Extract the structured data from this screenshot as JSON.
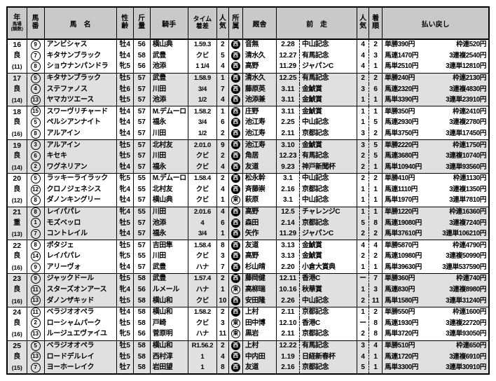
{
  "table": {
    "header": {
      "year": {
        "main": "年",
        "sub1": "馬場",
        "sub2": "(頭数)"
      },
      "umaban": {
        "l1": "馬",
        "l2": "番"
      },
      "name": "馬　名",
      "sexage": {
        "l1": "性",
        "l2": "齢"
      },
      "weight": {
        "l1": "斤",
        "l2": "量"
      },
      "jockey": "騎手",
      "time": {
        "l1": "タイム",
        "l2": "着差"
      },
      "pop": {
        "l1": "人",
        "l2": "気"
      },
      "belong": {
        "l1": "所",
        "l2": "属"
      },
      "stable": "厩舎",
      "prev": "前　走",
      "prev_pop": {
        "l1": "人",
        "l2": "気"
      },
      "finish": {
        "l1": "着",
        "l2": "順"
      },
      "payout": "払い戻し"
    },
    "groups": [
      {
        "year": "16",
        "track": "良",
        "heads": "(11)",
        "rows": [
          {
            "num": "9",
            "name": "アンビシャス",
            "sexage": "牡4",
            "weight": "56",
            "jockey": "横山典",
            "time": "1.59.3",
            "pop": "2",
            "belong": "西",
            "stable": "音無",
            "prev_date": "2.28",
            "prev_race": "中山記念",
            "prev_pop": "4",
            "finish": "2",
            "payout1": "単勝390円",
            "payout2": "枠連520円"
          },
          {
            "num": "7",
            "name": "キタサンブラック",
            "sexage": "牡4",
            "weight": "58",
            "jockey": "武豊",
            "time": "クビ",
            "pop": "5",
            "belong": "西",
            "stable": "清水久",
            "prev_date": "12.27",
            "prev_race": "有馬記念",
            "prev_pop": "4",
            "finish": "3",
            "payout1": "馬連1470円",
            "payout2": "3連複2540円"
          },
          {
            "num": "8",
            "name": "ショウナンパンドラ",
            "sexage": "牝5",
            "weight": "56",
            "jockey": "池添",
            "time": "1 1/4",
            "pop": "4",
            "belong": "西",
            "stable": "高野",
            "prev_date": "11.29",
            "prev_race": "ジャパンC",
            "prev_pop": "4",
            "finish": "1",
            "payout1": "馬単2510円",
            "payout2": "3連単12810円"
          }
        ]
      },
      {
        "year": "17",
        "track": "良",
        "heads": "(14)",
        "rows": [
          {
            "num": "5",
            "name": "キタサンブラック",
            "sexage": "牡5",
            "weight": "57",
            "jockey": "武豊",
            "time": "1.58.9",
            "pop": "1",
            "belong": "西",
            "stable": "清水久",
            "prev_date": "12.25",
            "prev_race": "有馬記念",
            "prev_pop": "2",
            "finish": "2",
            "payout1": "単勝240円",
            "payout2": "枠連2130円"
          },
          {
            "num": "4",
            "name": "ステファノス",
            "sexage": "牡6",
            "weight": "57",
            "jockey": "川田",
            "time": "3/4",
            "pop": "7",
            "belong": "西",
            "stable": "藤原英",
            "prev_date": "3.11",
            "prev_race": "金鯱賞",
            "prev_pop": "3",
            "finish": "6",
            "payout1": "馬連2320円",
            "payout2": "3連複4830円"
          },
          {
            "num": "13",
            "name": "ヤマカツエース",
            "sexage": "牡5",
            "weight": "57",
            "jockey": "池添",
            "time": "1/2",
            "pop": "4",
            "belong": "西",
            "stable": "池添兼",
            "prev_date": "3.11",
            "prev_race": "金鯱賞",
            "prev_pop": "1",
            "finish": "1",
            "payout1": "馬単3390円",
            "payout2": "3連単23910円"
          }
        ]
      },
      {
        "year": "18",
        "track": "良",
        "heads": "(16)",
        "rows": [
          {
            "num": "15",
            "name": "スワーヴリチャード",
            "sexage": "牡4",
            "weight": "57",
            "jockey": "M.デムーロ",
            "time": "1.58.2",
            "pop": "1",
            "belong": "西",
            "stable": "庄野",
            "prev_date": "3.11",
            "prev_race": "金鯱賞",
            "prev_pop": "1",
            "finish": "1",
            "payout1": "単勝350円",
            "payout2": "枠連2410円"
          },
          {
            "num": "5",
            "name": "ペルシアンナイト",
            "sexage": "牡4",
            "weight": "57",
            "jockey": "福永",
            "time": "3/4",
            "pop": "6",
            "belong": "西",
            "stable": "池江寿",
            "prev_date": "2.25",
            "prev_race": "中山記念",
            "prev_pop": "1",
            "finish": "5",
            "payout1": "馬連2930円",
            "payout2": "3連複2780円"
          },
          {
            "num": "8",
            "name": "アルアイン",
            "sexage": "牡4",
            "weight": "57",
            "jockey": "川田",
            "time": "1/2",
            "pop": "2",
            "belong": "西",
            "stable": "池江寿",
            "prev_date": "2.11",
            "prev_race": "京都記念",
            "prev_pop": "3",
            "finish": "2",
            "payout1": "馬単3750円",
            "payout2": "3連単17450円"
          }
        ]
      },
      {
        "year": "19",
        "track": "良",
        "heads": "(14)",
        "rows": [
          {
            "num": "3",
            "name": "アルアイン",
            "sexage": "牡5",
            "weight": "57",
            "jockey": "北村友",
            "time": "2.01.0",
            "pop": "9",
            "belong": "西",
            "stable": "池江寿",
            "prev_date": "3.10",
            "prev_race": "金鯱賞",
            "prev_pop": "3",
            "finish": "5",
            "payout1": "単勝2220円",
            "payout2": "枠連1750円"
          },
          {
            "num": "6",
            "name": "キセキ",
            "sexage": "牡5",
            "weight": "57",
            "jockey": "川田",
            "time": "クビ",
            "pop": "2",
            "belong": "西",
            "stable": "角居",
            "prev_date": "12.23",
            "prev_race": "有馬記念",
            "prev_pop": "2",
            "finish": "5",
            "payout1": "馬連3680円",
            "payout2": "3連複10740円"
          },
          {
            "num": "2",
            "name": "ワグネリアン",
            "sexage": "牡4",
            "weight": "57",
            "jockey": "福永",
            "time": "クビ",
            "pop": "4",
            "belong": "西",
            "stable": "友道",
            "prev_date": "9.23",
            "prev_race": "神戸新聞杯",
            "prev_pop": "2",
            "finish": "1",
            "payout1": "馬単10940円",
            "payout2": "3連単93560円"
          }
        ]
      },
      {
        "year": "20",
        "track": "良",
        "heads": "(12)",
        "rows": [
          {
            "num": "5",
            "name": "ラッキーライラック",
            "sexage": "牝5",
            "weight": "55",
            "jockey": "M.デムーロ",
            "time": "1.58.4",
            "pop": "2",
            "belong": "西",
            "stable": "松永幹",
            "prev_date": "3.1",
            "prev_race": "中山記念",
            "prev_pop": "2",
            "finish": "2",
            "payout1": "単勝410円",
            "payout2": "枠連1130円"
          },
          {
            "num": "12",
            "name": "クロノジェネシス",
            "sexage": "牝4",
            "weight": "55",
            "jockey": "北村友",
            "time": "クビ",
            "pop": "4",
            "belong": "西",
            "stable": "斉藤崇",
            "prev_date": "2.16",
            "prev_race": "京都記念",
            "prev_pop": "1",
            "finish": "1",
            "payout1": "馬連1110円",
            "payout2": "3連複1350円"
          },
          {
            "num": "8",
            "name": "ダノンキングリー",
            "sexage": "牡4",
            "weight": "57",
            "jockey": "横山典",
            "time": "クビ",
            "pop": "1",
            "belong": "東",
            "stable": "萩原",
            "prev_date": "3.1",
            "prev_race": "中山記念",
            "prev_pop": "1",
            "finish": "1",
            "payout1": "馬単1970円",
            "payout2": "3連単7810円"
          }
        ]
      },
      {
        "year": "21",
        "track": "重",
        "heads": "(13)",
        "rows": [
          {
            "num": "8",
            "name": "レイパパレ",
            "sexage": "牝4",
            "weight": "55",
            "jockey": "川田",
            "time": "2.01.6",
            "pop": "4",
            "belong": "西",
            "stable": "高野",
            "prev_date": "12.5",
            "prev_race": "チャレンジC",
            "prev_pop": "1",
            "finish": "1",
            "payout1": "単勝1220円",
            "payout2": "枠連16360円"
          },
          {
            "num": "1",
            "name": "モズベッロ",
            "sexage": "牡5",
            "weight": "57",
            "jockey": "池添",
            "time": "4",
            "pop": "6",
            "belong": "西",
            "stable": "森田",
            "prev_date": "2.14",
            "prev_race": "京都記念",
            "prev_pop": "5",
            "finish": "8",
            "payout1": "馬連19080円",
            "payout2": "3連複7240円"
          },
          {
            "num": "7",
            "name": "コントレイル",
            "sexage": "牡4",
            "weight": "57",
            "jockey": "福永",
            "time": "3/4",
            "pop": "1",
            "belong": "西",
            "stable": "矢作",
            "prev_date": "11.29",
            "prev_race": "ジャパンC",
            "prev_pop": "2",
            "finish": "2",
            "payout1": "馬単37610円",
            "payout2": "3連単106210円"
          }
        ]
      },
      {
        "year": "22",
        "track": "良",
        "heads": "(16)",
        "rows": [
          {
            "num": "8",
            "name": "ポタジェ",
            "sexage": "牡5",
            "weight": "57",
            "jockey": "吉田隼",
            "time": "1.58.4",
            "pop": "8",
            "belong": "西",
            "stable": "友道",
            "prev_date": "3.13",
            "prev_race": "金鯱賞",
            "prev_pop": "4",
            "finish": "4",
            "payout1": "単勝5870円",
            "payout2": "枠連4790円"
          },
          {
            "num": "14",
            "name": "レイパパレ",
            "sexage": "牝5",
            "weight": "55",
            "jockey": "川田",
            "time": "クビ",
            "pop": "3",
            "belong": "西",
            "stable": "高野",
            "prev_date": "3.13",
            "prev_race": "金鯱賞",
            "prev_pop": "2",
            "finish": "2",
            "payout1": "馬連10980円",
            "payout2": "3連複50990円"
          },
          {
            "num": "9",
            "name": "アリーヴォ",
            "sexage": "牡4",
            "weight": "57",
            "jockey": "武豊",
            "time": "ハナ",
            "pop": "7",
            "belong": "西",
            "stable": "杉山晴",
            "prev_date": "2.20",
            "prev_race": "小倉大賞典",
            "prev_pop": "1",
            "finish": "1",
            "payout1": "馬単39630円",
            "payout2": "3連単537590円"
          }
        ]
      },
      {
        "year": "23",
        "track": "良",
        "heads": "(16)",
        "rows": [
          {
            "num": "9",
            "name": "ジャックドール",
            "sexage": "牡5",
            "weight": "58",
            "jockey": "武豊",
            "time": "1.57.4",
            "pop": "2",
            "belong": "西",
            "stable": "藤岡健",
            "prev_date": "12.11",
            "prev_race": "香港C",
            "prev_pop": "ー",
            "finish": "7",
            "payout1": "単勝360円",
            "payout2": "枠連740円"
          },
          {
            "num": "11",
            "name": "スターズオンアース",
            "sexage": "牝4",
            "weight": "56",
            "jockey": "ルメール",
            "time": "ハナ",
            "pop": "1",
            "belong": "東",
            "stable": "高柳瑞",
            "prev_date": "10.16",
            "prev_race": "秋華賞",
            "prev_pop": "1",
            "finish": "3",
            "payout1": "馬連830円",
            "payout2": "3連複8980円"
          },
          {
            "num": "13",
            "name": "ダノンザキッド",
            "sexage": "牡5",
            "weight": "58",
            "jockey": "横山和",
            "time": "クビ",
            "pop": "10",
            "belong": "西",
            "stable": "安田隆",
            "prev_date": "2.26",
            "prev_race": "中山記念",
            "prev_pop": "2",
            "finish": "11",
            "payout1": "馬単1580円",
            "payout2": "3連単31240円"
          }
        ]
      },
      {
        "year": "24",
        "track": "良",
        "heads": "(16)",
        "rows": [
          {
            "num": "11",
            "name": "ベラジオオペラ",
            "sexage": "牡4",
            "weight": "58",
            "jockey": "横山和",
            "time": "1.58.2",
            "pop": "2",
            "belong": "西",
            "stable": "上村",
            "prev_date": "2.11",
            "prev_race": "京都記念",
            "prev_pop": "1",
            "finish": "2",
            "payout1": "単勝550円",
            "payout2": "枠連1600円"
          },
          {
            "num": "2",
            "name": "ローシャムパーク",
            "sexage": "牡5",
            "weight": "58",
            "jockey": "戸崎",
            "time": "クビ",
            "pop": "3",
            "belong": "東",
            "stable": "田中博",
            "prev_date": "12.10",
            "prev_race": "香港C",
            "prev_pop": "ー",
            "finish": "8",
            "payout1": "馬連1930円",
            "payout2": "3連複22720円"
          },
          {
            "num": "13",
            "name": "ルージュエヴァイユ",
            "sexage": "牝5",
            "weight": "56",
            "jockey": "菅原明",
            "time": "ハナ",
            "pop": "11",
            "belong": "東",
            "stable": "黒岩",
            "prev_date": "2.11",
            "prev_race": "京都記念",
            "prev_pop": "2",
            "finish": "8",
            "payout1": "馬単3720円",
            "payout2": "3連単93050円"
          }
        ]
      },
      {
        "year": "25",
        "track": "良",
        "heads": "(15)",
        "rows": [
          {
            "num": "5",
            "name": "ベラジオオペラ",
            "sexage": "牡5",
            "weight": "58",
            "jockey": "横山和",
            "time": "R1.56.2",
            "pop": "2",
            "belong": "西",
            "stable": "上村",
            "prev_date": "12.22",
            "prev_race": "有馬記念",
            "prev_pop": "3",
            "finish": "4",
            "payout1": "単勝510円",
            "payout2": "枠連650円"
          },
          {
            "num": "13",
            "name": "ロードデルレイ",
            "sexage": "牡5",
            "weight": "58",
            "jockey": "西村淳",
            "time": "1",
            "pop": "4",
            "belong": "西",
            "stable": "中内田",
            "prev_date": "1.19",
            "prev_race": "日経新春杯",
            "prev_pop": "4",
            "finish": "1",
            "payout1": "馬連1720円",
            "payout2": "3連複6910円"
          },
          {
            "num": "7",
            "name": "ヨーホーレイク",
            "sexage": "牡7",
            "weight": "58",
            "jockey": "岩田望",
            "time": "1",
            "pop": "8",
            "belong": "西",
            "stable": "友道",
            "prev_date": "2.16",
            "prev_race": "京都記念",
            "prev_pop": "5",
            "finish": "1",
            "payout1": "馬単3300円",
            "payout2": "3連単30910円"
          }
        ]
      }
    ]
  }
}
